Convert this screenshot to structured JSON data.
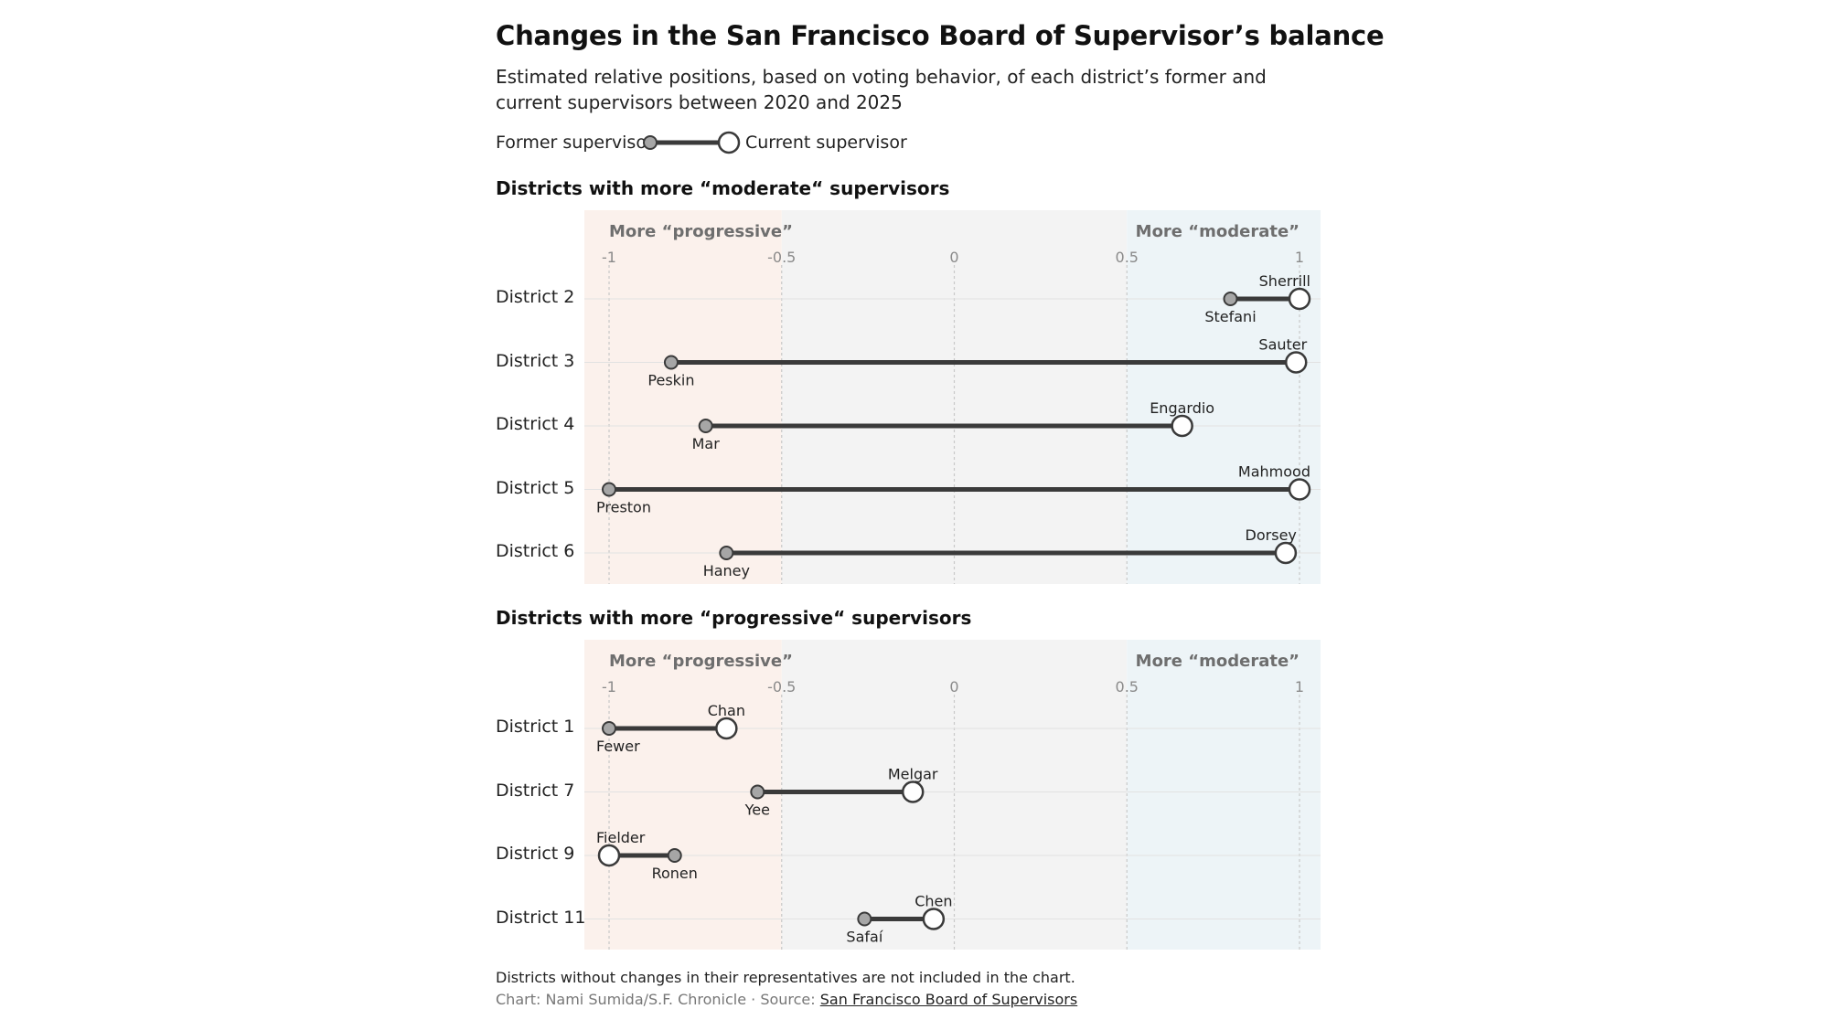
{
  "title": "Changes in the San Francisco Board of Supervisor’s balance",
  "subtitle": "Estimated relative positions, based on voting behavior, of each district’s former and current supervisors between 2020 and 2025",
  "legend": {
    "former_label": "Former supervisor",
    "current_label": "Current supervisor"
  },
  "zone_labels": {
    "progressive": "More “progressive”",
    "moderate": "More “moderate”"
  },
  "colors": {
    "progressive_zone": "#fbf1ec",
    "neutral_zone": "#f3f3f3",
    "moderate_zone": "#edf4f7",
    "line": "#3a3a3a",
    "former_dot": "#a6a6a6",
    "current_dot": "#ffffff"
  },
  "footer": {
    "note": "Districts without changes in their representatives are not included in the chart.",
    "credit_prefix": "Chart: Nami Sumida/S.F. Chronicle · Source: ",
    "source_link": "San Francisco Board of Supervisors"
  },
  "chart_data": [
    {
      "type": "dumbbell",
      "title": "Districts with more “moderate“ supervisors",
      "xlim": [
        -1,
        1
      ],
      "ticks": [
        -1,
        -0.5,
        0,
        0.5,
        1
      ],
      "tick_labels": [
        "-1",
        "-0.5",
        "0",
        "0.5",
        "1"
      ],
      "grid": true,
      "rows": [
        {
          "district": "District 2",
          "former": {
            "name": "Stefani",
            "value": 0.8
          },
          "current": {
            "name": "Sherrill",
            "value": 1.0
          }
        },
        {
          "district": "District 3",
          "former": {
            "name": "Peskin",
            "value": -0.82
          },
          "current": {
            "name": "Sauter",
            "value": 0.99
          }
        },
        {
          "district": "District 4",
          "former": {
            "name": "Mar",
            "value": -0.72
          },
          "current": {
            "name": "Engardio",
            "value": 0.66
          }
        },
        {
          "district": "District 5",
          "former": {
            "name": "Preston",
            "value": -1.0
          },
          "current": {
            "name": "Mahmood",
            "value": 1.0
          }
        },
        {
          "district": "District 6",
          "former": {
            "name": "Haney",
            "value": -0.66
          },
          "current": {
            "name": "Dorsey",
            "value": 0.96
          }
        }
      ]
    },
    {
      "type": "dumbbell",
      "title": "Districts with more “progressive“ supervisors",
      "xlim": [
        -1,
        1
      ],
      "ticks": [
        -1,
        -0.5,
        0,
        0.5,
        1
      ],
      "tick_labels": [
        "-1",
        "-0.5",
        "0",
        "0.5",
        "1"
      ],
      "grid": true,
      "rows": [
        {
          "district": "District 1",
          "former": {
            "name": "Fewer",
            "value": -1.0
          },
          "current": {
            "name": "Chan",
            "value": -0.66
          }
        },
        {
          "district": "District 7",
          "former": {
            "name": "Yee",
            "value": -0.57
          },
          "current": {
            "name": "Melgar",
            "value": -0.12
          }
        },
        {
          "district": "District 9",
          "former": {
            "name": "Ronen",
            "value": -0.81
          },
          "current": {
            "name": "Fielder",
            "value": -1.0
          }
        },
        {
          "district": "District 11",
          "former": {
            "name": "Safaí",
            "value": -0.26
          },
          "current": {
            "name": "Chen",
            "value": -0.06
          }
        }
      ]
    }
  ]
}
